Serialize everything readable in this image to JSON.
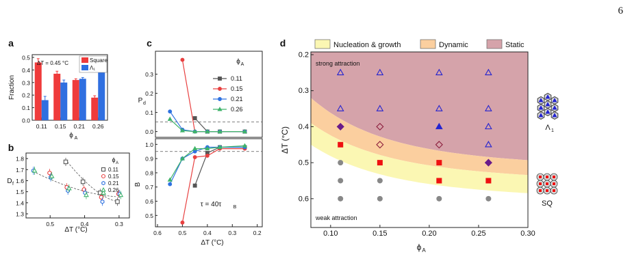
{
  "page_number": "6",
  "colors": {
    "square": "#ef3b3b",
    "lambda": "#2f6fe0",
    "c011": "#555555",
    "c015": "#e84040",
    "c021": "#2f72e0",
    "c026": "#3fb36a",
    "nucleation": "#fbf7b3",
    "dynamic": "#fbcf9f",
    "static": "#d5a3aa"
  },
  "chart_data": [
    {
      "panel": "a",
      "type": "bar",
      "categories": [
        "0.11",
        "0.15",
        "0.21",
        "0.26"
      ],
      "series": [
        {
          "name": "Square",
          "values": [
            0.46,
            0.37,
            0.32,
            0.18
          ],
          "errors": [
            0.03,
            0.02,
            0.01,
            0.015
          ]
        },
        {
          "name": "Λ₁",
          "values": [
            0.16,
            0.3,
            0.33,
            0.4
          ],
          "errors": [
            0.03,
            0.02,
            0.01,
            0.02
          ]
        }
      ],
      "annotation": "ΔT = 0.45 °C",
      "ylabel": "Fraction",
      "xlabel": "ϕA",
      "ylim": [
        0,
        0.5
      ],
      "yticks": [
        "0.0",
        "0.1",
        "0.2",
        "0.3",
        "0.4",
        "0.5"
      ],
      "legend": "top-right"
    },
    {
      "panel": "b",
      "type": "scatter",
      "xlabel": "ΔT (°C)",
      "ylabel": "Df",
      "xlim": [
        0.55,
        0.28
      ],
      "ylim": [
        1.3,
        1.85
      ],
      "xticks": [
        "0.5",
        "0.4",
        "0.3"
      ],
      "yticks": [
        "1.3",
        "1.4",
        "1.5",
        "1.6",
        "1.7",
        "1.8"
      ],
      "legend_title": "ϕA",
      "series": [
        {
          "name": "0.11",
          "marker": "square",
          "points": [
            [
              0.45,
              1.77
            ],
            [
              0.4,
              1.59
            ],
            [
              0.35,
              1.49
            ],
            [
              0.3,
              1.41
            ]
          ]
        },
        {
          "name": "0.15",
          "marker": "circle",
          "points": [
            [
              0.5,
              1.67
            ],
            [
              0.45,
              1.54
            ],
            [
              0.4,
              1.52
            ],
            [
              0.35,
              1.45
            ],
            [
              0.3,
              1.48
            ]
          ]
        },
        {
          "name": "0.21",
          "marker": "hexagon",
          "points": [
            [
              0.55,
              1.69
            ],
            [
              0.5,
              1.63
            ],
            [
              0.45,
              1.51
            ],
            [
              0.4,
              1.49
            ],
            [
              0.35,
              1.41
            ],
            [
              0.3,
              1.48
            ]
          ]
        },
        {
          "name": "0.26",
          "marker": "triangle",
          "points": [
            [
              0.55,
              1.69
            ],
            [
              0.5,
              1.64
            ],
            [
              0.45,
              1.53
            ],
            [
              0.4,
              1.47
            ],
            [
              0.35,
              1.49
            ],
            [
              0.3,
              1.47
            ]
          ]
        }
      ]
    },
    {
      "panel": "c",
      "type": "line",
      "xlabel": "ΔT (°C)",
      "xlim": [
        0.6,
        0.18
      ],
      "xticks": [
        "0.6",
        "0.5",
        "0.4",
        "0.3",
        "0.2"
      ],
      "legend_title": "ϕA",
      "annotation": "τ = 40τB",
      "top": {
        "ylabel": "Pd",
        "ylim": [
          -0.03,
          0.42
        ],
        "yticks": [
          "0.0",
          "0.1",
          "0.2",
          "0.3"
        ],
        "dashed": 0.05
      },
      "bottom": {
        "ylabel": "B",
        "ylim": [
          0.42,
          1.04
        ],
        "yticks": [
          "0.5",
          "0.6",
          "0.7",
          "0.8",
          "0.9",
          "1.0"
        ],
        "dashed": 0.95
      },
      "series": [
        {
          "name": "0.11",
          "pd": [
            [
              0.45,
              0.07
            ],
            [
              0.4,
              0.0
            ],
            [
              0.35,
              0.0
            ],
            [
              0.25,
              0.0
            ]
          ],
          "b": [
            [
              0.45,
              0.71
            ],
            [
              0.4,
              0.94
            ],
            [
              0.35,
              0.98
            ],
            [
              0.25,
              0.98
            ]
          ]
        },
        {
          "name": "0.15",
          "pd": [
            [
              0.5,
              0.375
            ],
            [
              0.45,
              0.0
            ],
            [
              0.4,
              0.0
            ],
            [
              0.35,
              0.0
            ],
            [
              0.25,
              0.0
            ]
          ],
          "b": [
            [
              0.5,
              0.45
            ],
            [
              0.45,
              0.91
            ],
            [
              0.4,
              0.92
            ],
            [
              0.35,
              0.97
            ],
            [
              0.25,
              0.97
            ]
          ]
        },
        {
          "name": "0.21",
          "pd": [
            [
              0.55,
              0.105
            ],
            [
              0.5,
              0.01
            ],
            [
              0.45,
              0.0
            ],
            [
              0.4,
              0.0
            ],
            [
              0.35,
              0.0
            ],
            [
              0.25,
              0.0
            ]
          ],
          "b": [
            [
              0.55,
              0.72
            ],
            [
              0.5,
              0.9
            ],
            [
              0.45,
              0.95
            ],
            [
              0.4,
              0.98
            ],
            [
              0.35,
              0.98
            ],
            [
              0.25,
              0.98
            ]
          ]
        },
        {
          "name": "0.26",
          "pd": [
            [
              0.55,
              0.065
            ],
            [
              0.5,
              0.005
            ],
            [
              0.45,
              0.0
            ],
            [
              0.4,
              0.0
            ],
            [
              0.35,
              0.0
            ],
            [
              0.25,
              0.0
            ]
          ],
          "b": [
            [
              0.55,
              0.75
            ],
            [
              0.5,
              0.9
            ],
            [
              0.45,
              0.97
            ],
            [
              0.4,
              0.97
            ],
            [
              0.35,
              0.98
            ],
            [
              0.25,
              0.99
            ]
          ]
        }
      ]
    },
    {
      "panel": "d",
      "type": "scatter",
      "xlabel": "ϕA",
      "ylabel": "ΔT (°C)",
      "xlim": [
        0.08,
        0.3
      ],
      "ylim": [
        0.2,
        0.68
      ],
      "y_inverted": true,
      "xticks": [
        "0.10",
        "0.15",
        "0.20",
        "0.25",
        "0.30"
      ],
      "yticks": [
        "0.2",
        "0.3",
        "0.4",
        "0.5",
        "0.6"
      ],
      "legend": [
        "Nucleation & growth",
        "Dynamic",
        "Static"
      ],
      "region_labels": {
        "top": "strong attraction",
        "bottom": "weak attraction"
      },
      "side_labels": {
        "lambda": "Λ₁",
        "square": "SQ"
      },
      "points": [
        {
          "phi": 0.11,
          "dT": 0.25,
          "m": "tri-open"
        },
        {
          "phi": 0.15,
          "dT": 0.25,
          "m": "tri-open"
        },
        {
          "phi": 0.21,
          "dT": 0.25,
          "m": "tri-open"
        },
        {
          "phi": 0.26,
          "dT": 0.25,
          "m": "tri-open"
        },
        {
          "phi": 0.11,
          "dT": 0.35,
          "m": "tri-open"
        },
        {
          "phi": 0.15,
          "dT": 0.35,
          "m": "tri-open"
        },
        {
          "phi": 0.21,
          "dT": 0.35,
          "m": "tri-open"
        },
        {
          "phi": 0.26,
          "dT": 0.35,
          "m": "tri-open"
        },
        {
          "phi": 0.11,
          "dT": 0.4,
          "m": "dia-fill"
        },
        {
          "phi": 0.15,
          "dT": 0.4,
          "m": "dia-open"
        },
        {
          "phi": 0.21,
          "dT": 0.4,
          "m": "tri-fill"
        },
        {
          "phi": 0.26,
          "dT": 0.4,
          "m": "tri-open"
        },
        {
          "phi": 0.11,
          "dT": 0.45,
          "m": "sq-red"
        },
        {
          "phi": 0.15,
          "dT": 0.45,
          "m": "dia-open"
        },
        {
          "phi": 0.21,
          "dT": 0.45,
          "m": "dia-open"
        },
        {
          "phi": 0.26,
          "dT": 0.45,
          "m": "tri-open"
        },
        {
          "phi": 0.11,
          "dT": 0.5,
          "m": "circle-grey"
        },
        {
          "phi": 0.15,
          "dT": 0.5,
          "m": "sq-red"
        },
        {
          "phi": 0.21,
          "dT": 0.5,
          "m": "sq-red"
        },
        {
          "phi": 0.26,
          "dT": 0.5,
          "m": "dia-fill"
        },
        {
          "phi": 0.11,
          "dT": 0.55,
          "m": "circle-grey"
        },
        {
          "phi": 0.15,
          "dT": 0.55,
          "m": "circle-grey"
        },
        {
          "phi": 0.21,
          "dT": 0.55,
          "m": "sq-red"
        },
        {
          "phi": 0.26,
          "dT": 0.55,
          "m": "sq-red"
        },
        {
          "phi": 0.11,
          "dT": 0.6,
          "m": "circle-grey"
        },
        {
          "phi": 0.15,
          "dT": 0.6,
          "m": "circle-grey"
        },
        {
          "phi": 0.21,
          "dT": 0.6,
          "m": "circle-grey"
        },
        {
          "phi": 0.26,
          "dT": 0.6,
          "m": "circle-grey"
        }
      ]
    }
  ]
}
